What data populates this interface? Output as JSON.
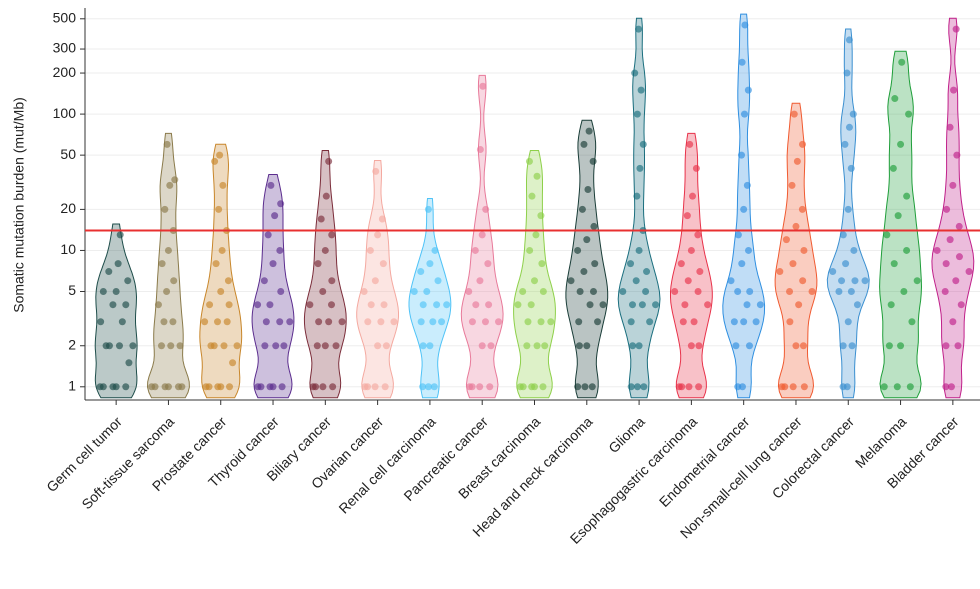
{
  "chart_data": {
    "type": "violin",
    "y_label": "Somatic mutation burden (mut/Mb)",
    "log_scale": true,
    "grid": true,
    "ylim": [
      0.8,
      600
    ],
    "yticks": [
      1,
      2,
      5,
      10,
      20,
      50,
      100,
      200,
      300,
      500
    ],
    "threshold": 14,
    "threshold_color": "#e83030",
    "categories": [
      "Germ cell tumor",
      "Soft-tissue sarcoma",
      "Prostate cancer",
      "Thyroid cancer",
      "Biliary cancer",
      "Ovarian cancer",
      "Renal cell carcinoma",
      "Pancreatic cancer",
      "Breast carcinoma",
      "Head and neck carcinoma",
      "Glioma",
      "Esophagogastric carcinoma",
      "Endometrial cancer",
      "Non-small-cell lung cancer",
      "Colorectal cancer",
      "Melanoma",
      "Bladder cancer"
    ],
    "colors": [
      "#1e4d4a",
      "#8a7a4a",
      "#c8862a",
      "#5b2d8e",
      "#7b2d3a",
      "#f4a9a0",
      "#4fc3f7",
      "#e87a9a",
      "#8ed04a",
      "#1a3d38",
      "#1a6e7e",
      "#e8324a",
      "#2f8fe0",
      "#f05a30",
      "#3a8fd0",
      "#1f9e3a",
      "#c0208a"
    ],
    "values": [
      [
        1,
        1,
        1,
        1,
        1,
        1.5,
        2,
        2,
        2,
        2,
        3,
        3,
        4,
        4,
        5,
        5,
        6,
        7,
        8,
        13
      ],
      [
        1,
        1,
        1,
        1,
        1,
        1,
        2,
        2,
        2,
        3,
        3,
        4,
        5,
        6,
        8,
        10,
        14,
        20,
        30,
        33,
        60
      ],
      [
        1,
        1,
        1,
        1,
        1,
        1.5,
        2,
        2,
        2,
        2,
        3,
        3,
        3,
        4,
        4,
        5,
        6,
        8,
        10,
        14,
        20,
        30,
        45,
        50
      ],
      [
        1,
        1,
        1,
        1,
        1,
        2,
        2,
        2,
        3,
        3,
        3,
        4,
        4,
        5,
        6,
        8,
        10,
        13,
        18,
        22,
        30
      ],
      [
        1,
        1,
        1,
        1,
        2,
        2,
        2,
        3,
        3,
        3,
        4,
        4,
        5,
        6,
        8,
        10,
        13,
        17,
        25,
        45
      ],
      [
        1,
        1,
        1,
        1,
        2,
        2,
        3,
        3,
        3,
        4,
        4,
        5,
        6,
        8,
        10,
        13,
        17,
        38
      ],
      [
        1,
        1,
        1,
        2,
        2,
        3,
        3,
        3,
        4,
        4,
        4,
        5,
        5,
        6,
        7,
        8,
        10,
        20
      ],
      [
        1,
        1,
        1,
        1,
        2,
        2,
        3,
        3,
        3,
        4,
        4,
        5,
        6,
        8,
        10,
        13,
        20,
        55,
        160
      ],
      [
        1,
        1,
        1,
        1,
        1,
        2,
        2,
        2,
        3,
        3,
        3,
        4,
        4,
        5,
        5,
        6,
        8,
        10,
        13,
        18,
        25,
        35,
        45
      ],
      [
        1,
        1,
        1,
        2,
        2,
        3,
        3,
        4,
        4,
        5,
        5,
        6,
        7,
        8,
        10,
        12,
        15,
        20,
        28,
        45,
        60,
        75
      ],
      [
        1,
        1,
        1,
        2,
        2,
        3,
        3,
        4,
        4,
        4,
        5,
        5,
        6,
        7,
        8,
        10,
        14,
        25,
        40,
        60,
        100,
        150,
        200,
        420
      ],
      [
        1,
        1,
        1,
        1,
        2,
        2,
        3,
        3,
        4,
        4,
        5,
        5,
        6,
        7,
        8,
        10,
        13,
        18,
        25,
        40,
        60
      ],
      [
        1,
        1,
        2,
        2,
        3,
        3,
        3,
        4,
        4,
        5,
        5,
        6,
        8,
        10,
        13,
        20,
        30,
        50,
        100,
        150,
        240,
        450
      ],
      [
        1,
        1,
        1,
        1,
        2,
        2,
        3,
        4,
        5,
        5,
        6,
        7,
        8,
        10,
        12,
        15,
        20,
        30,
        45,
        60,
        100
      ],
      [
        1,
        1,
        2,
        2,
        3,
        4,
        5,
        5,
        6,
        6,
        6,
        7,
        8,
        10,
        13,
        20,
        40,
        60,
        80,
        100,
        200,
        350
      ],
      [
        1,
        1,
        1,
        2,
        2,
        3,
        4,
        5,
        6,
        8,
        10,
        13,
        18,
        25,
        40,
        60,
        100,
        130,
        240
      ],
      [
        1,
        1,
        2,
        2,
        3,
        4,
        5,
        6,
        7,
        8,
        9,
        10,
        12,
        15,
        20,
        30,
        50,
        80,
        150,
        420
      ]
    ]
  }
}
